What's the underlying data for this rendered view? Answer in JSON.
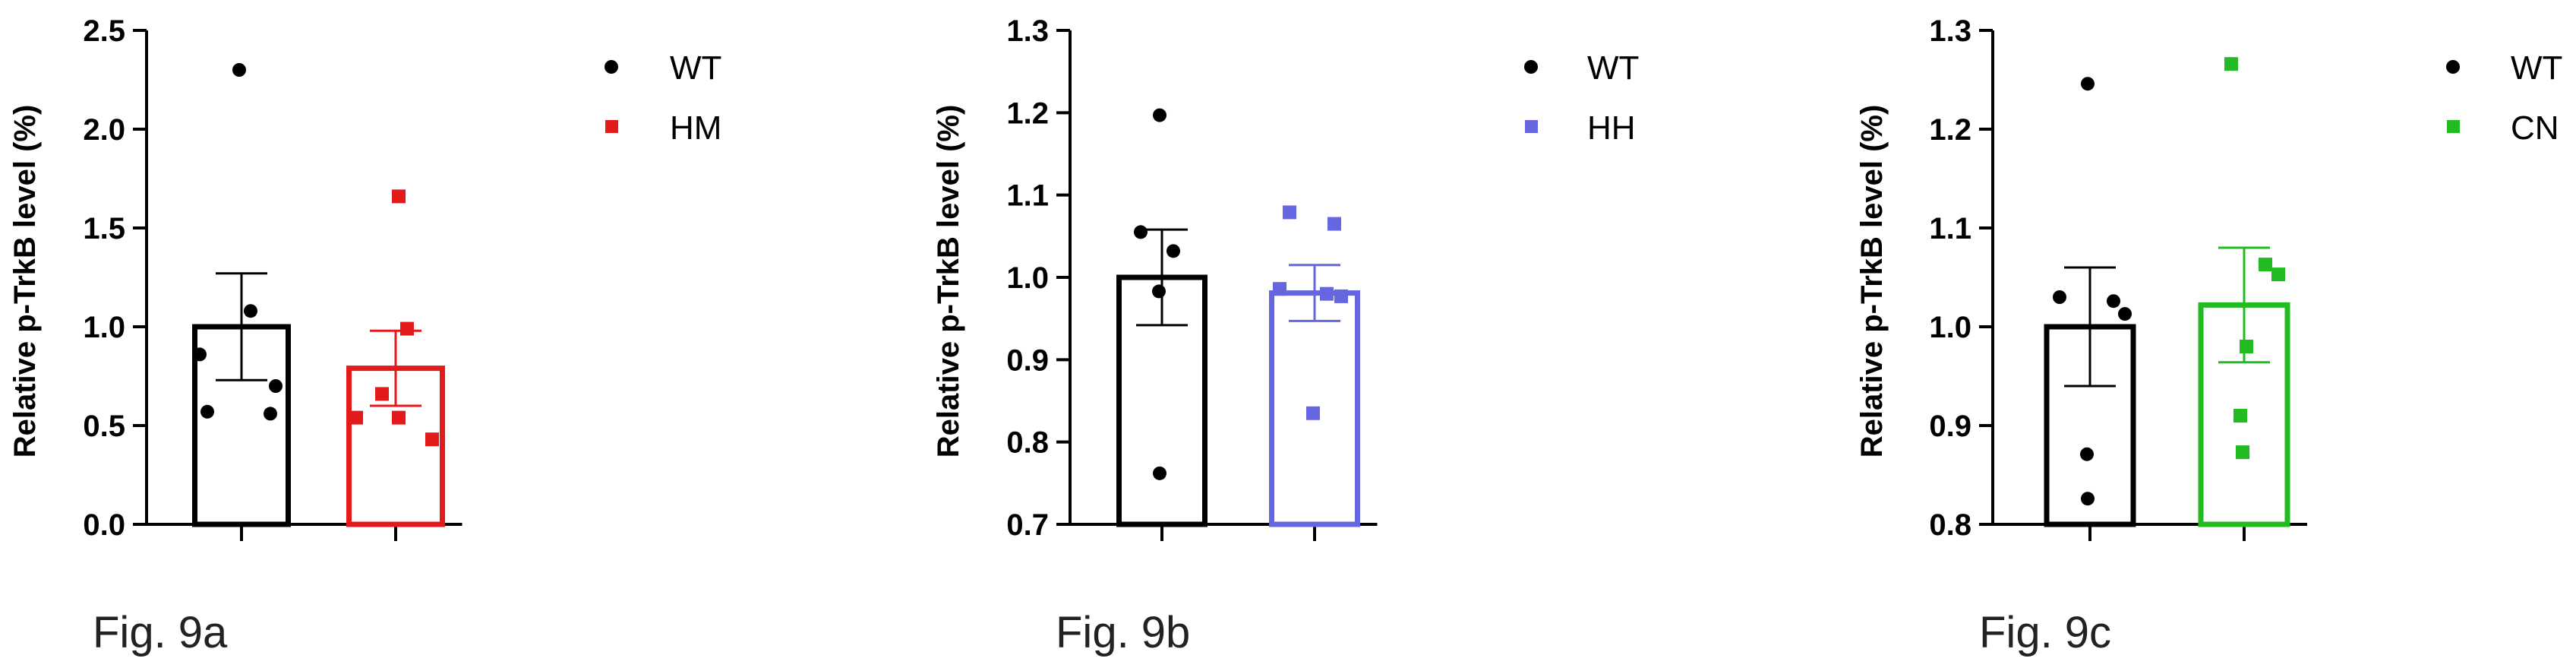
{
  "chart_data": [
    {
      "type": "bar",
      "ylabel": "Relative p-TrkB level (%)",
      "ylim": [
        0,
        2.5
      ],
      "yticks": [
        0.0,
        0.5,
        1.0,
        1.5,
        2.0,
        2.5
      ],
      "ytick_labels": [
        "0.0",
        "0.5",
        "1.0",
        "1.5",
        "2.0",
        "2.5"
      ],
      "categories": [
        "WT",
        "HM"
      ],
      "legend_position": "top-right",
      "caption": "Fig. 9a",
      "series": [
        {
          "name": "WT",
          "color": "#000000",
          "marker": "circle",
          "mean": 1.0,
          "sem": 0.27,
          "points": [
            2.3,
            1.08,
            0.86,
            0.7,
            0.57,
            0.56
          ]
        },
        {
          "name": "HM",
          "color": "#e31a1c",
          "marker": "square",
          "mean": 0.79,
          "sem": 0.19,
          "points": [
            1.66,
            0.99,
            0.66,
            0.54,
            0.54,
            0.43
          ]
        }
      ]
    },
    {
      "type": "bar",
      "ylabel": "Relative p-TrkB level (%)",
      "ylim": [
        0.7,
        1.3
      ],
      "yticks": [
        0.7,
        0.8,
        0.9,
        1.0,
        1.1,
        1.2,
        1.3
      ],
      "ytick_labels": [
        "0.7",
        "0.8",
        "0.9",
        "1.0",
        "1.1",
        "1.2",
        "1.3"
      ],
      "categories": [
        "WT",
        "HH"
      ],
      "legend_position": "top-right",
      "caption": "Fig. 9b",
      "series": [
        {
          "name": "WT",
          "color": "#000000",
          "marker": "circle",
          "mean": 1.0,
          "sem": 0.058,
          "points": [
            1.197,
            1.055,
            1.032,
            0.983,
            0.762
          ]
        },
        {
          "name": "HH",
          "color": "#6666e0",
          "marker": "square",
          "mean": 0.981,
          "sem": 0.034,
          "points": [
            1.079,
            1.065,
            0.986,
            0.98,
            0.977,
            0.835
          ]
        }
      ]
    },
    {
      "type": "bar",
      "ylabel": "Relative p-TrkB level (%)",
      "ylim": [
        0.8,
        1.3
      ],
      "yticks": [
        0.8,
        0.9,
        1.0,
        1.1,
        1.2,
        1.3
      ],
      "ytick_labels": [
        "0.8",
        "0.9",
        "1.0",
        "1.1",
        "1.2",
        "1.3"
      ],
      "categories": [
        "WT",
        "CN"
      ],
      "legend_position": "top-right",
      "caption": "Fig. 9c",
      "series": [
        {
          "name": "WT",
          "color": "#000000",
          "marker": "circle",
          "mean": 1.0,
          "sem": 0.06,
          "points": [
            1.246,
            1.03,
            1.026,
            1.013,
            0.871,
            0.826
          ]
        },
        {
          "name": "CN",
          "color": "#22bb22",
          "marker": "square",
          "mean": 1.022,
          "sem": 0.058,
          "points": [
            1.266,
            1.063,
            1.053,
            0.98,
            0.91,
            0.873
          ]
        }
      ]
    }
  ]
}
